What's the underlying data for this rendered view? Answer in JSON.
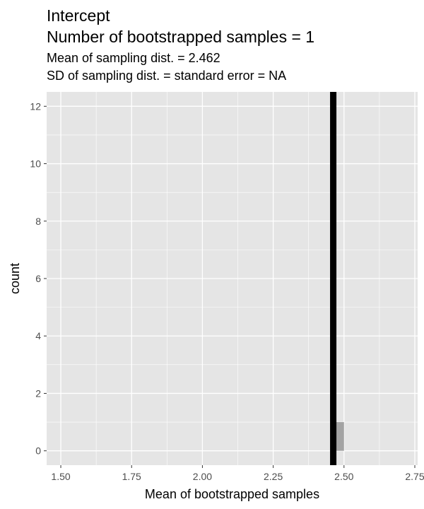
{
  "chart_data": {
    "type": "histogram",
    "title": [
      "Intercept",
      "Number of bootstrapped samples = 1"
    ],
    "subtitle": [
      "Mean of sampling dist. = 2.462",
      "SD of sampling dist. = standard error = NA"
    ],
    "xlabel": "Mean of bootstrapped samples",
    "ylabel": "count",
    "xlim": [
      1.45,
      2.76
    ],
    "ylim": [
      -0.5,
      12.5
    ],
    "x_ticks": [
      1.5,
      1.75,
      2.0,
      2.25,
      2.5,
      2.75
    ],
    "x_tick_labels": [
      "1.50",
      "1.75",
      "2.00",
      "2.25",
      "2.50",
      "2.75"
    ],
    "y_ticks": [
      0,
      2,
      4,
      6,
      8,
      10,
      12
    ],
    "y_tick_labels": [
      "0",
      "2",
      "4",
      "6",
      "8",
      "10",
      "12"
    ],
    "bins": [
      {
        "x_start": 2.462,
        "x_end": 2.5,
        "count": 1
      }
    ],
    "vline": {
      "x": 2.462
    },
    "grid": true,
    "colors": {
      "panel": "#e5e5e5",
      "grid": "#ffffff",
      "bar": "#a3a3a3",
      "vline": "#000000"
    }
  }
}
